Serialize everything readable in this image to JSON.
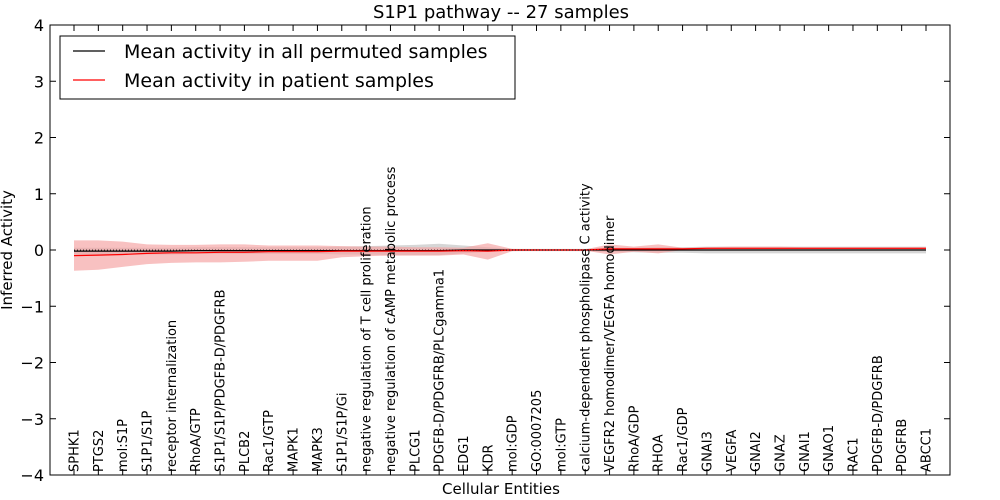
{
  "chart_data": {
    "type": "area",
    "title": "S1P1 pathway -- 27 samples",
    "xlabel": "Cellular Entities",
    "ylabel": "Inferred Activity",
    "ylim": [
      -4,
      4
    ],
    "yticks": [
      4,
      3,
      2,
      1,
      0,
      -1,
      -2,
      -3,
      -4
    ],
    "ytick_labels": [
      "4",
      "3",
      "2",
      "1",
      "0",
      "−1",
      "−2",
      "−3",
      "−4"
    ],
    "grid": false,
    "legend_position": "top-left",
    "categories": [
      "SPHK1",
      "PTGS2",
      "mol:S1P",
      "S1P1/S1P",
      "receptor internalization",
      "RhoA/GTP",
      "S1P1/S1P/PDGFB-D/PDGFRB",
      "PLCB2",
      "Rac1/GTP",
      "MAPK1",
      "MAPK3",
      "S1P1/S1P/Gi",
      "negative regulation of T cell proliferation",
      "negative regulation of cAMP metabolic process",
      "PLCG1",
      "PDGFB-D/PDGFRB/PLCgamma1",
      "EDG1",
      "KDR",
      "mol:GDP",
      "GO:0007205",
      "mol:GTP",
      "calcium-dependent phospholipase C activity",
      "VEGFR2 homodimer/VEGFA homodimer",
      "RhoA/GDP",
      "RHOA",
      "Rac1/GDP",
      "GNAI3",
      "VEGFA",
      "GNAI2",
      "GNAZ",
      "GNAI1",
      "GNAO1",
      "RAC1",
      "PDGFB-D/PDGFRB",
      "PDGFRB",
      "ABCC1"
    ],
    "series": [
      {
        "name": "Mean activity in all permuted samples",
        "color": "#000000",
        "band_color": "#bbbbbb",
        "values": [
          -0.02,
          -0.02,
          -0.02,
          -0.02,
          -0.02,
          -0.01,
          -0.01,
          -0.01,
          -0.01,
          -0.01,
          -0.01,
          -0.01,
          -0.01,
          -0.01,
          -0.01,
          -0.01,
          0.0,
          0.0,
          0.0,
          0.0,
          0.0,
          0.0,
          0.0,
          0.0,
          0.0,
          0.0,
          0.0,
          0.0,
          0.0,
          0.0,
          0.0,
          0.0,
          0.0,
          0.0,
          0.0,
          0.0
        ],
        "lower": [
          -0.08,
          -0.08,
          -0.08,
          -0.08,
          -0.08,
          -0.07,
          -0.07,
          -0.07,
          -0.07,
          -0.07,
          -0.07,
          -0.08,
          -0.08,
          -0.09,
          -0.09,
          -0.09,
          -0.06,
          -0.03,
          -0.02,
          -0.02,
          -0.02,
          -0.02,
          -0.04,
          -0.04,
          -0.05,
          -0.05,
          -0.06,
          -0.06,
          -0.06,
          -0.06,
          -0.06,
          -0.06,
          -0.06,
          -0.06,
          -0.06,
          -0.06
        ],
        "upper": [
          0.04,
          0.04,
          0.04,
          0.04,
          0.04,
          0.05,
          0.05,
          0.05,
          0.05,
          0.05,
          0.05,
          0.06,
          0.07,
          0.08,
          0.09,
          0.11,
          0.08,
          0.05,
          0.02,
          0.02,
          0.02,
          0.02,
          0.04,
          0.04,
          0.05,
          0.05,
          0.06,
          0.06,
          0.06,
          0.06,
          0.06,
          0.06,
          0.06,
          0.06,
          0.06,
          0.06
        ]
      },
      {
        "name": "Mean activity in patient samples",
        "color": "#ff0000",
        "band_color": "#f4a0a0",
        "values": [
          -0.1,
          -0.09,
          -0.08,
          -0.06,
          -0.05,
          -0.05,
          -0.04,
          -0.04,
          -0.03,
          -0.03,
          -0.03,
          -0.02,
          -0.02,
          -0.02,
          -0.02,
          -0.02,
          -0.01,
          -0.02,
          0.0,
          0.0,
          0.0,
          0.0,
          0.02,
          0.02,
          0.02,
          0.02,
          0.03,
          0.03,
          0.03,
          0.03,
          0.03,
          0.03,
          0.03,
          0.03,
          0.03,
          0.03
        ],
        "lower": [
          -0.37,
          -0.35,
          -0.3,
          -0.25,
          -0.23,
          -0.22,
          -0.22,
          -0.21,
          -0.19,
          -0.19,
          -0.19,
          -0.13,
          -0.11,
          -0.1,
          -0.1,
          -0.1,
          -0.08,
          -0.17,
          -0.02,
          -0.01,
          -0.01,
          -0.01,
          -0.08,
          -0.03,
          -0.06,
          0.0,
          0.01,
          0.01,
          0.01,
          0.01,
          0.01,
          0.01,
          0.01,
          0.01,
          0.01,
          0.01
        ],
        "upper": [
          0.17,
          0.17,
          0.15,
          0.1,
          0.09,
          0.09,
          0.1,
          0.1,
          0.08,
          0.08,
          0.08,
          0.07,
          0.06,
          0.06,
          0.05,
          0.05,
          0.04,
          0.12,
          0.02,
          0.01,
          0.01,
          0.01,
          0.1,
          0.06,
          0.1,
          0.04,
          0.05,
          0.06,
          0.06,
          0.06,
          0.05,
          0.05,
          0.05,
          0.05,
          0.05,
          0.05
        ]
      }
    ]
  }
}
